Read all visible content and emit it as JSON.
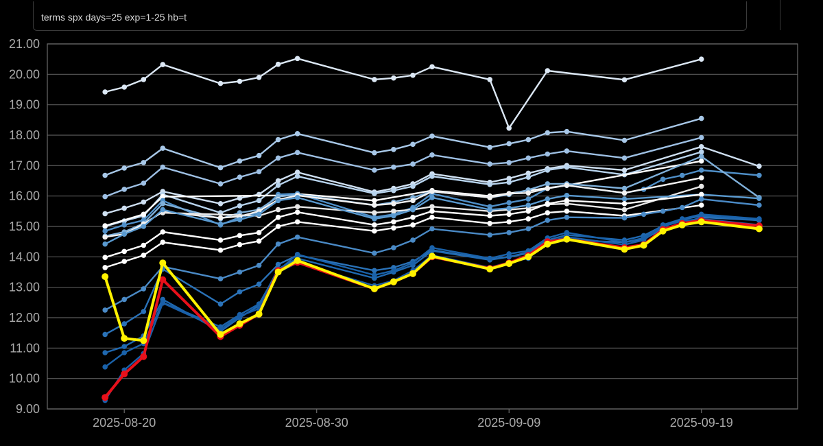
{
  "command_bar": {
    "query": "terms spx days=25 exp=1-25 hb=t"
  },
  "chart_data": {
    "type": "line",
    "xlabel": "",
    "ylabel": "",
    "ylim": [
      9,
      21
    ],
    "xlim": [
      "2025-08-16",
      "2025-09-24"
    ],
    "grid": true,
    "yticks": [
      "9.00",
      "10.00",
      "11.00",
      "12.00",
      "13.00",
      "14.00",
      "15.00",
      "16.00",
      "17.00",
      "18.00",
      "19.00",
      "20.00",
      "21.00"
    ],
    "xticks": [
      "2025-08-20",
      "2025-08-30",
      "2025-09-09",
      "2025-09-19"
    ],
    "x": [
      "2025-08-19",
      "2025-08-20",
      "2025-08-21",
      "2025-08-22",
      "2025-08-25",
      "2025-08-26",
      "2025-08-27",
      "2025-08-28",
      "2025-08-29",
      "2025-09-02",
      "2025-09-03",
      "2025-09-04",
      "2025-09-05",
      "2025-09-08",
      "2025-09-09",
      "2025-09-10",
      "2025-09-11",
      "2025-09-12",
      "2025-09-15",
      "2025-09-16",
      "2025-09-17",
      "2025-09-18",
      "2025-09-19",
      "2025-09-22"
    ],
    "series": [
      {
        "color": "#dce8f5",
        "values": [
          19.42,
          19.58,
          19.83,
          20.32,
          19.7,
          19.77,
          19.9,
          20.33,
          20.52,
          19.83,
          19.88,
          19.97,
          20.25,
          19.83,
          18.23,
          null,
          20.12,
          null,
          19.82,
          null,
          null,
          null,
          20.5,
          null
        ]
      },
      {
        "color": "#a8c8e8",
        "values": [
          16.68,
          16.92,
          17.1,
          17.57,
          16.93,
          17.15,
          17.33,
          17.85,
          18.05,
          17.42,
          17.53,
          17.7,
          17.97,
          17.6,
          17.72,
          17.85,
          18.08,
          18.12,
          17.83,
          null,
          null,
          null,
          18.55,
          null
        ]
      },
      {
        "color": "#9ec0e4",
        "values": [
          15.98,
          16.22,
          16.42,
          16.95,
          16.4,
          16.62,
          16.8,
          17.25,
          17.43,
          16.85,
          16.95,
          17.05,
          17.35,
          17.05,
          17.1,
          17.25,
          17.38,
          17.48,
          17.25,
          null,
          null,
          null,
          17.92,
          null
        ]
      },
      {
        "color": "#cfe0f2",
        "values": [
          15.42,
          15.6,
          15.8,
          16.15,
          15.75,
          15.93,
          16.05,
          16.5,
          16.78,
          16.13,
          16.25,
          16.4,
          16.73,
          16.45,
          16.58,
          16.75,
          16.9,
          17.0,
          16.85,
          null,
          null,
          null,
          17.62,
          16.98
        ]
      },
      {
        "color": "#b8d4ee",
        "values": [
          15.0,
          15.18,
          15.35,
          16.05,
          15.45,
          15.68,
          15.85,
          16.35,
          16.65,
          16.08,
          16.18,
          16.32,
          16.65,
          16.38,
          16.45,
          16.62,
          16.85,
          16.95,
          16.7,
          null,
          null,
          null,
          17.45,
          null
        ]
      },
      {
        "color": "#ffffff",
        "values": [
          15.02,
          null,
          15.4,
          15.98,
          null,
          null,
          null,
          16.02,
          16.07,
          15.85,
          null,
          null,
          16.18,
          16.0,
          null,
          null,
          null,
          16.35,
          null,
          null,
          null,
          null,
          17.15,
          null
        ]
      },
      {
        "color": "#4f8fc8",
        "values": [
          14.85,
          15.05,
          15.2,
          15.85,
          15.05,
          15.3,
          15.45,
          16.05,
          16.08,
          15.3,
          15.4,
          15.62,
          16.08,
          15.65,
          15.78,
          15.9,
          16.25,
          16.35,
          16.1,
          16.22,
          16.55,
          16.68,
          16.85,
          16.68
        ]
      },
      {
        "color": "#7fb0da",
        "values": [
          14.68,
          14.82,
          15.1,
          15.75,
          15.25,
          15.45,
          15.55,
          15.98,
          16.05,
          15.7,
          15.8,
          15.95,
          16.15,
          15.95,
          16.05,
          16.2,
          16.4,
          16.4,
          16.25,
          null,
          null,
          null,
          17.3,
          15.95
        ]
      },
      {
        "color": "#f2f2f2",
        "values": [
          14.65,
          14.75,
          15.08,
          15.48,
          15.28,
          15.33,
          15.5,
          15.88,
          16.02,
          15.7,
          15.75,
          15.85,
          16.15,
          15.95,
          16.08,
          16.1,
          16.25,
          16.35,
          16.1,
          null,
          null,
          null,
          16.6,
          null
        ]
      },
      {
        "color": "#e8e8e8",
        "values": [
          null,
          null,
          null,
          15.45,
          null,
          null,
          15.35,
          15.55,
          15.65,
          15.45,
          15.5,
          15.55,
          15.65,
          15.5,
          15.55,
          15.6,
          15.72,
          15.75,
          15.55,
          null,
          null,
          null,
          16.32,
          null
        ]
      },
      {
        "color": "#5a9ad0",
        "values": [
          14.42,
          14.75,
          15.0,
          15.55,
          15.08,
          15.22,
          15.4,
          15.85,
          15.95,
          15.25,
          15.35,
          15.55,
          15.95,
          15.55,
          15.6,
          15.7,
          15.9,
          16.02,
          15.9,
          null,
          null,
          null,
          16.05,
          15.92
        ]
      },
      {
        "color": "#ffffff",
        "values": [
          13.98,
          14.18,
          14.38,
          14.82,
          14.55,
          14.7,
          14.8,
          15.3,
          15.47,
          15.05,
          15.15,
          15.3,
          15.5,
          15.35,
          15.4,
          15.5,
          15.75,
          15.85,
          15.75,
          null,
          null,
          null,
          16.05,
          null
        ]
      },
      {
        "color": "#ffffff",
        "values": [
          13.65,
          13.85,
          14.05,
          14.48,
          14.22,
          14.4,
          14.52,
          15.0,
          15.15,
          14.85,
          14.95,
          15.05,
          15.3,
          15.1,
          15.15,
          15.25,
          15.45,
          15.5,
          15.35,
          null,
          null,
          null,
          15.7,
          null
        ]
      },
      {
        "color": "#4a8ac6",
        "values": [
          12.25,
          12.6,
          12.95,
          13.68,
          13.28,
          13.5,
          13.72,
          14.42,
          14.65,
          14.12,
          14.3,
          14.55,
          14.92,
          14.72,
          14.8,
          14.92,
          15.2,
          15.3,
          15.28,
          15.4,
          15.5,
          15.62,
          15.9,
          15.7
        ]
      },
      {
        "color": "#2a72b8",
        "values": [
          11.45,
          11.8,
          12.2,
          13.6,
          12.45,
          12.85,
          13.1,
          13.75,
          14.05,
          13.55,
          13.65,
          13.85,
          14.22,
          13.92,
          14.0,
          14.12,
          14.45,
          14.55,
          14.48,
          14.58,
          14.92,
          15.1,
          15.3,
          15.2
        ]
      },
      {
        "color": "#1f68b0",
        "values": [
          10.85,
          11.05,
          11.4,
          12.6,
          11.55,
          12.0,
          12.4,
          13.6,
          13.95,
          13.3,
          13.5,
          13.72,
          14.2,
          13.9,
          14.0,
          14.15,
          14.55,
          14.72,
          14.55,
          14.7,
          15.02,
          15.22,
          15.35,
          15.2
        ]
      },
      {
        "color": "#1a62aa",
        "values": [
          10.38,
          10.85,
          11.15,
          12.5,
          11.7,
          12.1,
          12.45,
          13.55,
          14.08,
          13.4,
          13.55,
          13.8,
          14.3,
          13.95,
          14.1,
          14.2,
          14.62,
          14.8,
          14.48,
          14.62,
          15.05,
          15.25,
          15.4,
          15.25
        ]
      },
      {
        "color": "#1a5fa8",
        "values": [
          9.28,
          10.28,
          10.82,
          12.48,
          11.62,
          12.05,
          12.3,
          13.5,
          13.8,
          13.05,
          13.22,
          13.55,
          14.05,
          13.65,
          13.82,
          13.95,
          14.5,
          14.65,
          14.4,
          14.55,
          15.0,
          15.18,
          15.25,
          15.05
        ]
      },
      {
        "color": "#e8101a",
        "values": [
          9.38,
          10.15,
          10.72,
          13.25,
          11.38,
          11.75,
          12.12,
          13.55,
          13.82,
          12.95,
          13.18,
          13.45,
          14.0,
          13.62,
          13.8,
          14.05,
          14.5,
          14.58,
          14.3,
          14.4,
          14.9,
          15.1,
          15.2,
          15.02
        ]
      },
      {
        "color": "#fff200",
        "values": [
          13.35,
          11.32,
          11.25,
          13.8,
          11.45,
          11.8,
          12.12,
          13.5,
          13.88,
          12.95,
          13.18,
          13.45,
          14.02,
          13.6,
          13.78,
          14.0,
          14.42,
          14.58,
          14.25,
          14.38,
          14.85,
          15.05,
          15.15,
          14.92
        ]
      }
    ]
  }
}
